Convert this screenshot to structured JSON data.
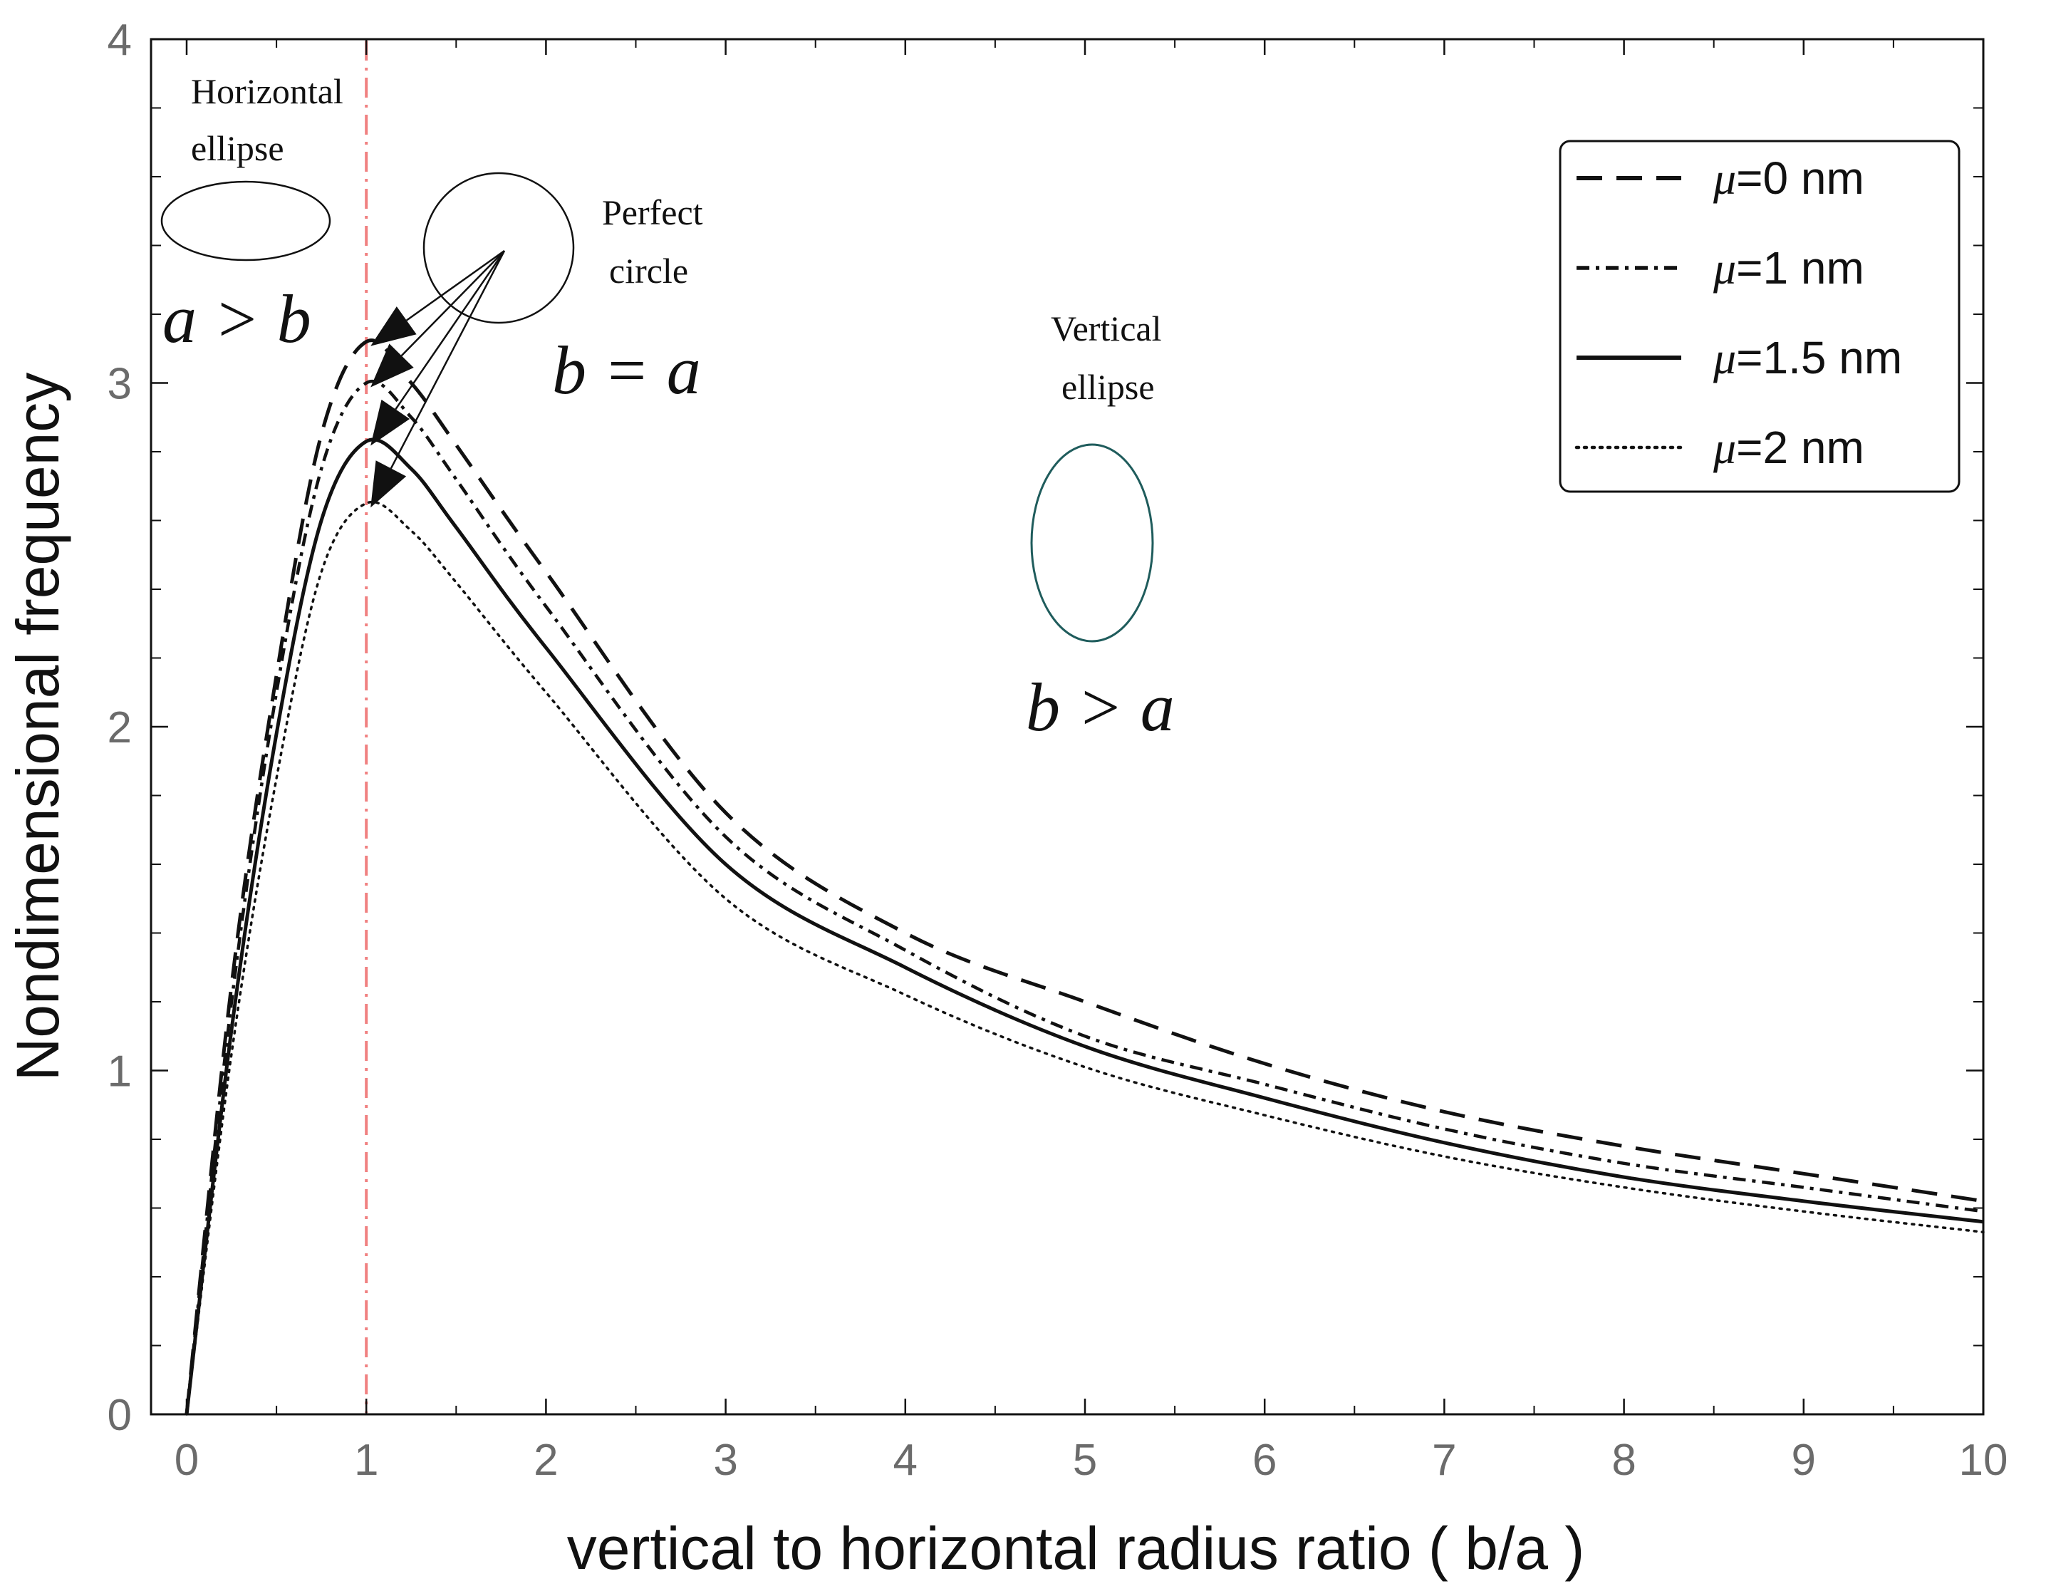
{
  "chart_data": {
    "type": "line",
    "title": "",
    "xlabel": "vertical to horizontal radius ratio ( b/a )",
    "ylabel": "Nondimensional  frequency",
    "xlim": [
      0,
      10
    ],
    "ylim": [
      0,
      4
    ],
    "xticks": [
      0,
      1,
      2,
      3,
      4,
      5,
      6,
      7,
      8,
      9,
      10
    ],
    "yticks": [
      0,
      1,
      2,
      3,
      4
    ],
    "xtick_labels": [
      "0",
      "1",
      "2",
      "3",
      "4",
      "5",
      "6",
      "7",
      "8",
      "9",
      "10"
    ],
    "ytick_labels": [
      "0",
      "1",
      "2",
      "3",
      "4"
    ],
    "grid": false,
    "legend_position": "top-right",
    "reference_line": {
      "x": 1,
      "color": "#f08080",
      "style": "dash-dot"
    },
    "series": [
      {
        "name": "μ=0 nm",
        "mu_symbol": "μ",
        "mu_value": "=0 nm",
        "style": "dashed",
        "peak_x": 1.0,
        "peak_y": 3.12,
        "x": [
          0,
          0.25,
          0.5,
          0.75,
          1.0,
          1.25,
          1.5,
          2,
          3,
          4,
          5,
          6,
          7,
          8,
          9,
          10
        ],
        "y": [
          0,
          1.25,
          2.15,
          2.85,
          3.12,
          3.0,
          2.82,
          2.45,
          1.75,
          1.4,
          1.2,
          1.02,
          0.88,
          0.78,
          0.7,
          0.62
        ]
      },
      {
        "name": "μ=1 nm",
        "mu_symbol": "μ",
        "mu_value": "=1 nm",
        "style": "dashdot",
        "peak_x": 1.0,
        "peak_y": 3.0,
        "x": [
          0,
          0.25,
          0.5,
          0.75,
          1.0,
          1.25,
          1.5,
          2,
          3,
          4,
          5,
          6,
          7,
          8,
          9,
          10
        ],
        "y": [
          0,
          1.2,
          2.1,
          2.75,
          3.0,
          2.9,
          2.72,
          2.35,
          1.68,
          1.35,
          1.1,
          0.96,
          0.83,
          0.73,
          0.66,
          0.59
        ]
      },
      {
        "name": "μ=1.5 nm",
        "mu_symbol": "μ",
        "mu_value": "=1.5 nm",
        "style": "solid",
        "peak_x": 1.0,
        "peak_y": 2.83,
        "x": [
          0,
          0.25,
          0.5,
          0.75,
          1.0,
          1.25,
          1.5,
          2,
          3,
          4,
          5,
          6,
          7,
          8,
          9,
          10
        ],
        "y": [
          0,
          1.12,
          1.98,
          2.6,
          2.83,
          2.75,
          2.58,
          2.23,
          1.6,
          1.3,
          1.07,
          0.92,
          0.79,
          0.69,
          0.62,
          0.56
        ]
      },
      {
        "name": "μ=2 nm",
        "mu_symbol": "μ",
        "mu_value": "=2 nm",
        "style": "dotted",
        "peak_x": 1.0,
        "peak_y": 2.65,
        "x": [
          0,
          0.25,
          0.5,
          0.75,
          1.0,
          1.25,
          1.5,
          2,
          3,
          4,
          5,
          6,
          7,
          8,
          9,
          10
        ],
        "y": [
          0,
          1.05,
          1.85,
          2.45,
          2.65,
          2.57,
          2.42,
          2.1,
          1.5,
          1.22,
          1.01,
          0.87,
          0.75,
          0.66,
          0.59,
          0.53
        ]
      }
    ],
    "annotations": {
      "horizontal_ellipse": "Horizontal\nellipse",
      "horizontal_relation": "a > b",
      "perfect_circle": "Perfect\ncircle",
      "circle_relation": "b = a",
      "vertical_ellipse": "Vertical\nellipse",
      "vertical_relation": "b > a"
    },
    "colors": {
      "axis": "#111111",
      "tick_label": "#6b6b6b",
      "vertical_ellipse": "#1f5c5c",
      "ref_line": "#f08080"
    }
  }
}
